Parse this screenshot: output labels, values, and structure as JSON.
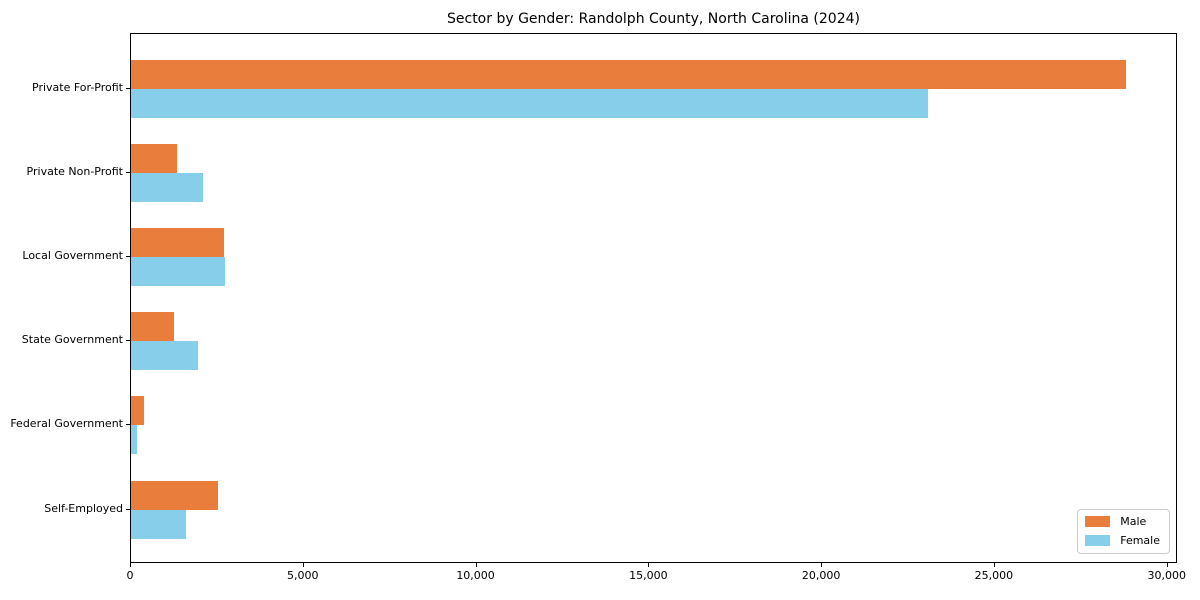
{
  "chart_data": {
    "type": "bar",
    "orientation": "horizontal",
    "title": "Sector by Gender: Randolph County, North Carolina (2024)",
    "categories": [
      "Private For-Profit",
      "Private Non-Profit",
      "Local Government",
      "State Government",
      "Federal Government",
      "Self-Employed"
    ],
    "series": [
      {
        "name": "Male",
        "color": "#e87d3c",
        "values": [
          28790,
          1320,
          2690,
          1240,
          370,
          2510
        ]
      },
      {
        "name": "Female",
        "color": "#87ceeb",
        "values": [
          23050,
          2070,
          2720,
          1930,
          160,
          1600
        ]
      }
    ],
    "xlabel": "",
    "ylabel": "",
    "xlim": [
      0,
      30240
    ],
    "xticks": [
      0,
      5000,
      10000,
      15000,
      20000,
      25000,
      30000
    ],
    "xtick_labels": [
      "0",
      "5,000",
      "10,000",
      "15,000",
      "20,000",
      "25,000",
      "30,000"
    ],
    "legend": {
      "position": "lower right",
      "entries": [
        "Male",
        "Female"
      ]
    },
    "grid": false,
    "colors": {
      "axis": "#000000",
      "background": "#ffffff"
    }
  }
}
